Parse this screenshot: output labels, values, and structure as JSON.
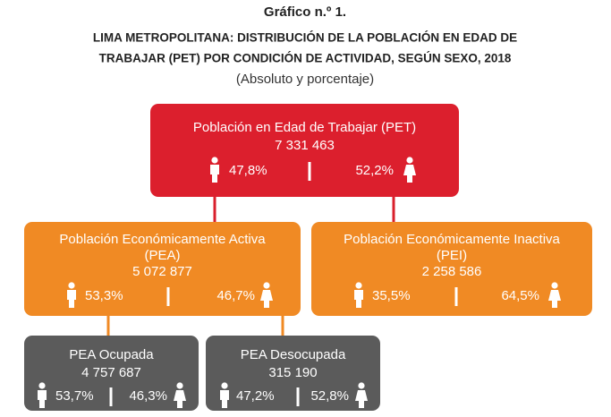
{
  "header": {
    "title": "Gráfico n.º 1.",
    "subtitle_lines": [
      "LIMA METROPOLITANA: DISTRIBUCIÓN DE LA POBLACIÓN EN EDAD DE",
      "TRABAJAR (PET) POR CONDICIÓN DE ACTIVIDAD, SEGÚN SEXO, 2018"
    ],
    "note": "(Absoluto y porcentaje)"
  },
  "nodes": [
    {
      "label": [
        "Población en Edad de Trabajar (PET)"
      ],
      "value": "7 331 463",
      "male": "47,8%",
      "female": "52,2%"
    },
    {
      "label": [
        "Población Económicamente Activa",
        "(PEA)"
      ],
      "value": "5 072 877",
      "male": "53,3%",
      "female": "46,7%"
    },
    {
      "label": [
        "Población Económicamente Inactiva",
        "(PEI)"
      ],
      "value": "2 258 586",
      "male": "35,5%",
      "female": "64,5%"
    },
    {
      "label": [
        "PEA Ocupada"
      ],
      "value": "4 757 687",
      "male": "53,7%",
      "female": "46,3%"
    },
    {
      "label": [
        "PEA Desocupada"
      ],
      "value": "315 190",
      "male": "47,2%",
      "female": "52,8%"
    }
  ]
}
